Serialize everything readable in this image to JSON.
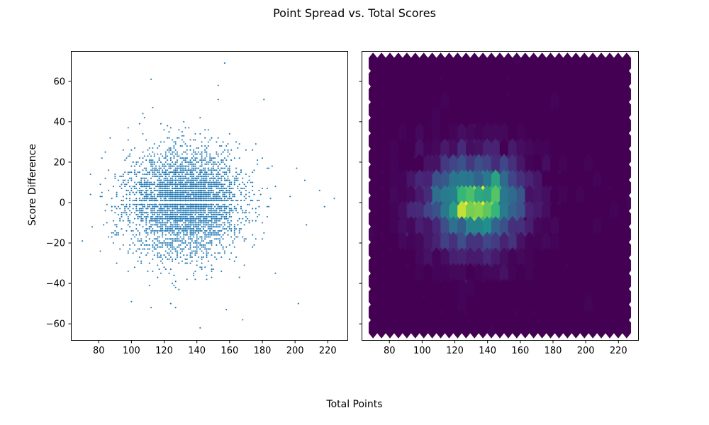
{
  "title": "Point Spread vs. Total Scores",
  "shared_xlabel": "Total Points",
  "chart_data": [
    {
      "type": "scatter",
      "panel": "left",
      "title": "",
      "xlabel": "",
      "ylabel": "Score Difference",
      "xlim": [
        63,
        232
      ],
      "ylim": [
        -68,
        75
      ],
      "xticks": [
        80,
        100,
        120,
        140,
        160,
        180,
        200,
        220
      ],
      "yticks": [
        -60,
        -40,
        -20,
        0,
        20,
        40,
        60
      ],
      "marker_color": "#1f77b4",
      "grid": false,
      "description_of_distribution": {
        "x_center": 133,
        "x_std": 17,
        "y_center": 0,
        "y_std": 13,
        "x_integer_values": true,
        "y_integer_values": true,
        "y_excludes_zero": true
      },
      "outliers": [
        {
          "x": 70,
          "y": -19
        },
        {
          "x": 75,
          "y": 4
        },
        {
          "x": 87,
          "y": 32
        },
        {
          "x": 112,
          "y": 61
        },
        {
          "x": 157,
          "y": 69
        },
        {
          "x": 153,
          "y": 58
        },
        {
          "x": 181,
          "y": 51
        },
        {
          "x": 215,
          "y": 6
        },
        {
          "x": 224,
          "y": 2
        },
        {
          "x": 202,
          "y": -50
        },
        {
          "x": 142,
          "y": -62
        },
        {
          "x": 201,
          "y": 17
        },
        {
          "x": 188,
          "y": -35
        },
        {
          "x": 100,
          "y": -49
        },
        {
          "x": 112,
          "y": -52
        },
        {
          "x": 158,
          "y": -53
        },
        {
          "x": 168,
          "y": -58
        },
        {
          "x": 207,
          "y": -11
        },
        {
          "x": 218,
          "y": -2
        },
        {
          "x": 206,
          "y": 11
        }
      ]
    },
    {
      "type": "heatmap",
      "subtype": "hexbin",
      "panel": "right",
      "title": "",
      "xlabel": "",
      "ylabel": "",
      "xlim": [
        63,
        232
      ],
      "ylim": [
        -68,
        75
      ],
      "xticks": [
        80,
        100,
        120,
        140,
        160,
        180,
        200,
        220
      ],
      "yticks": [
        -60,
        -40,
        -20,
        0,
        20,
        40,
        60
      ],
      "ytick_labels_shown": false,
      "sharey_with": "left",
      "colormap": "viridis",
      "x_range": [
        70,
        225
      ],
      "y_range": [
        -62,
        69
      ],
      "gridsize": 30,
      "hotspots": [
        {
          "x": 124,
          "y": 4
        },
        {
          "x": 134,
          "y": -4
        },
        {
          "x": 145,
          "y": 4
        },
        {
          "x": 124,
          "y": -4
        }
      ],
      "grid": false
    }
  ]
}
